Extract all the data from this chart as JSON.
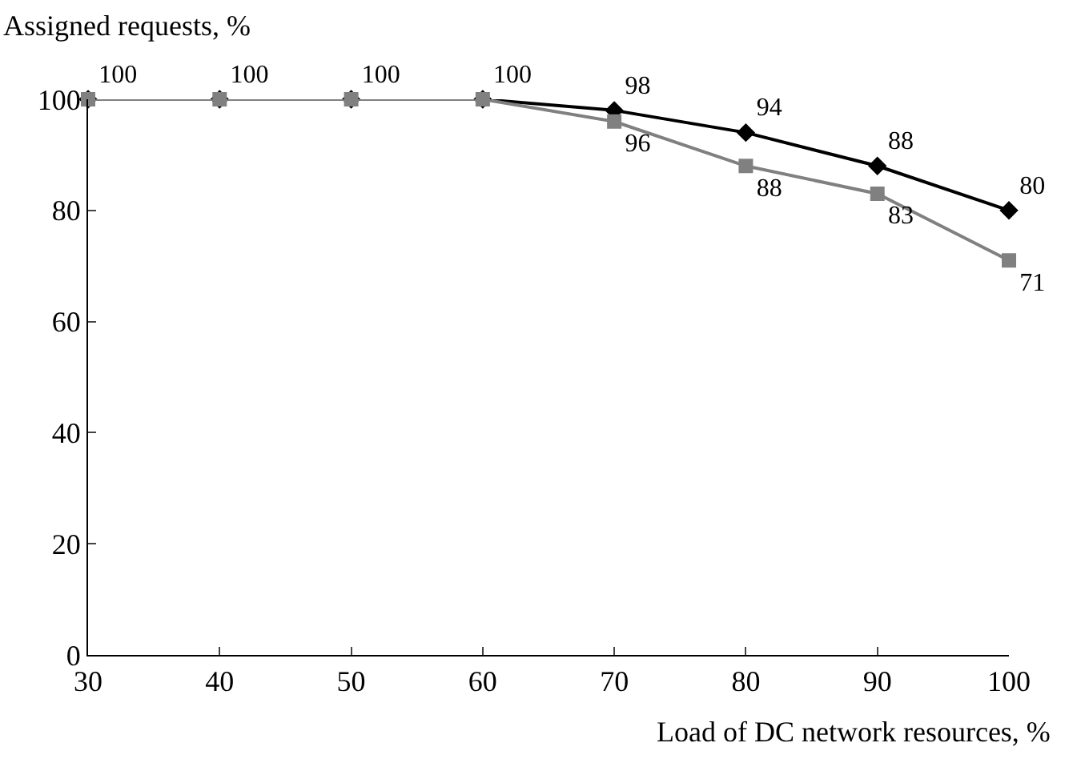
{
  "chart_data": {
    "type": "line",
    "xlabel": "Load of DC network resources, %",
    "ylabel": "Assigned requests, %",
    "x": [
      30,
      40,
      50,
      60,
      70,
      80,
      90,
      100
    ],
    "series": [
      {
        "color": "#000000",
        "marker": "diamond",
        "values": [
          100,
          100,
          100,
          100,
          98,
          94,
          88,
          80
        ],
        "value_labels": [
          "100",
          "100",
          "100",
          "100",
          "98",
          "94",
          "88",
          "80"
        ]
      },
      {
        "color": "#808080",
        "marker": "square",
        "values": [
          100,
          100,
          100,
          100,
          96,
          88,
          83,
          71
        ],
        "value_labels": [
          null,
          null,
          null,
          null,
          "96",
          "88",
          "83",
          "71"
        ]
      }
    ],
    "xlim": [
      30,
      100
    ],
    "xticks": [
      30,
      40,
      50,
      60,
      70,
      80,
      90,
      100
    ],
    "ylim": [
      0,
      100
    ],
    "yticks": [
      0,
      20,
      40,
      60,
      80,
      100
    ],
    "grid": false,
    "line_style": "solid"
  }
}
